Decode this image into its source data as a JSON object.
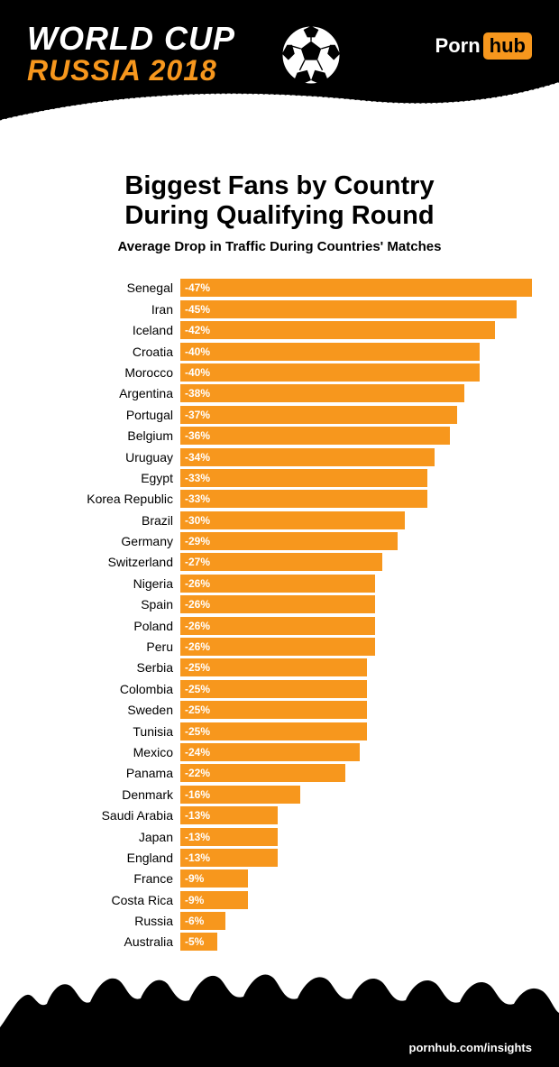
{
  "header": {
    "line1": "WORLD CUP",
    "line2": "RUSSIA 2018",
    "logo_left": "Porn",
    "logo_right": "hub"
  },
  "chart": {
    "type": "bar",
    "title_l1": "Biggest Fans by Country",
    "title_l2": "During Qualifying Round",
    "subtitle": "Average Drop in Traffic During Countries' Matches",
    "bar_color": "#f7971d",
    "value_text_color": "#ffffff",
    "label_fontsize": 14,
    "value_fontsize": 12,
    "max_abs_value": 47,
    "data": [
      {
        "country": "Senegal",
        "value": -47,
        "label": "-47%"
      },
      {
        "country": "Iran",
        "value": -45,
        "label": "-45%"
      },
      {
        "country": "Iceland",
        "value": -42,
        "label": "-42%"
      },
      {
        "country": "Croatia",
        "value": -40,
        "label": "-40%"
      },
      {
        "country": "Morocco",
        "value": -40,
        "label": "-40%"
      },
      {
        "country": "Argentina",
        "value": -38,
        "label": "-38%"
      },
      {
        "country": "Portugal",
        "value": -37,
        "label": "-37%"
      },
      {
        "country": "Belgium",
        "value": -36,
        "label": "-36%"
      },
      {
        "country": "Uruguay",
        "value": -34,
        "label": "-34%"
      },
      {
        "country": "Egypt",
        "value": -33,
        "label": "-33%"
      },
      {
        "country": "Korea Republic",
        "value": -33,
        "label": "-33%"
      },
      {
        "country": "Brazil",
        "value": -30,
        "label": "-30%"
      },
      {
        "country": "Germany",
        "value": -29,
        "label": "-29%"
      },
      {
        "country": "Switzerland",
        "value": -27,
        "label": "-27%"
      },
      {
        "country": "Nigeria",
        "value": -26,
        "label": "-26%"
      },
      {
        "country": "Spain",
        "value": -26,
        "label": "-26%"
      },
      {
        "country": "Poland",
        "value": -26,
        "label": "-26%"
      },
      {
        "country": "Peru",
        "value": -26,
        "label": "-26%"
      },
      {
        "country": "Serbia",
        "value": -25,
        "label": "-25%"
      },
      {
        "country": "Colombia",
        "value": -25,
        "label": "-25%"
      },
      {
        "country": "Sweden",
        "value": -25,
        "label": "-25%"
      },
      {
        "country": "Tunisia",
        "value": -25,
        "label": "-25%"
      },
      {
        "country": "Mexico",
        "value": -24,
        "label": "-24%"
      },
      {
        "country": "Panama",
        "value": -22,
        "label": "-22%"
      },
      {
        "country": "Denmark",
        "value": -16,
        "label": "-16%"
      },
      {
        "country": "Saudi Arabia",
        "value": -13,
        "label": "-13%"
      },
      {
        "country": "Japan",
        "value": -13,
        "label": "-13%"
      },
      {
        "country": "England",
        "value": -13,
        "label": "-13%"
      },
      {
        "country": "France",
        "value": -9,
        "label": "-9%"
      },
      {
        "country": "Costa Rica",
        "value": -9,
        "label": "-9%"
      },
      {
        "country": "Russia",
        "value": -6,
        "label": "-6%"
      },
      {
        "country": "Australia",
        "value": -5,
        "label": "-5%"
      }
    ]
  },
  "footer": {
    "url": "pornhub.com/insights"
  },
  "colors": {
    "accent": "#f7971d",
    "black": "#000000",
    "white": "#ffffff"
  }
}
